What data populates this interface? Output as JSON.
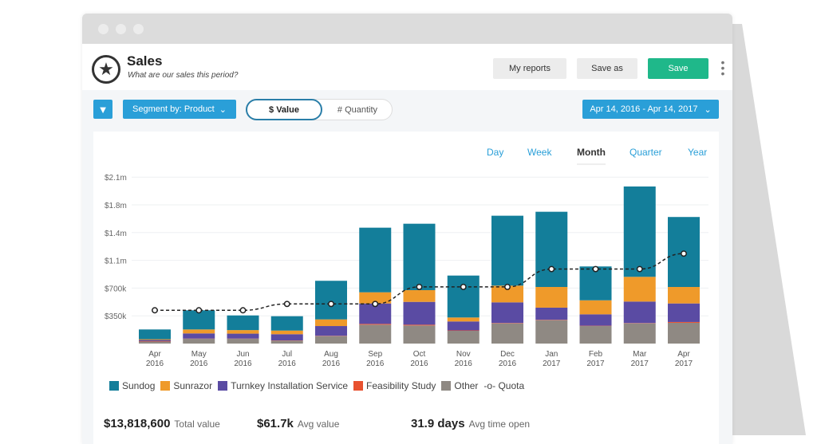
{
  "header": {
    "title": "Sales",
    "subtitle": "What are our sales this period?",
    "my_reports": "My reports",
    "save_as": "Save as",
    "save": "Save"
  },
  "toolbar": {
    "segment": "Segment by: Product",
    "value_toggle": "$ Value",
    "quantity_toggle": "# Quantity",
    "date_range": "Apr 14, 2016 - Apr 14, 2017"
  },
  "periods": [
    {
      "label": "Day"
    },
    {
      "label": "Week"
    },
    {
      "label": "Month"
    },
    {
      "label": "Quarter"
    },
    {
      "label": "Year"
    }
  ],
  "active_period": "Month",
  "colors": {
    "accent": "#2a9fd8",
    "save": "#1fb88a"
  },
  "chart_data": {
    "type": "bar",
    "stacked": true,
    "categories": [
      [
        "Apr",
        "2016"
      ],
      [
        "May",
        "2016"
      ],
      [
        "Jun",
        "2016"
      ],
      [
        "Jul",
        "2016"
      ],
      [
        "Aug",
        "2016"
      ],
      [
        "Sep",
        "2016"
      ],
      [
        "Oct",
        "2016"
      ],
      [
        "Nov",
        "2016"
      ],
      [
        "Dec",
        "2016"
      ],
      [
        "Jan",
        "2017"
      ],
      [
        "Feb",
        "2017"
      ],
      [
        "Mar",
        "2017"
      ],
      [
        "Apr",
        "2017"
      ]
    ],
    "yticks": [
      {
        "v": 350000,
        "label": "$350k"
      },
      {
        "v": 700000,
        "label": "$700k"
      },
      {
        "v": 1050000,
        "label": "$1.1m"
      },
      {
        "v": 1400000,
        "label": "$1.4m"
      },
      {
        "v": 1750000,
        "label": "$1.8m"
      },
      {
        "v": 2100000,
        "label": "$2.1m"
      }
    ],
    "ylim": [
      0,
      2100000
    ],
    "grid": true,
    "legend": "bottom-left",
    "series": [
      {
        "name": "Other",
        "color": "#8f8983",
        "values": [
          25000,
          60000,
          60000,
          37000,
          94000,
          238000,
          228000,
          161000,
          255000,
          295000,
          221000,
          255000,
          262000
        ]
      },
      {
        "name": "Feasibility Study",
        "color": "#e8512f",
        "values": [
          5000,
          3000,
          3000,
          3000,
          4000,
          10000,
          10000,
          5000,
          5000,
          5000,
          4000,
          4000,
          10000
        ]
      },
      {
        "name": "Turnkey Installation Service",
        "color": "#5a4ba3",
        "values": [
          15000,
          65000,
          62000,
          78000,
          123000,
          258000,
          288000,
          113000,
          260000,
          153000,
          144000,
          271000,
          234000
        ]
      },
      {
        "name": "Sunrazor",
        "color": "#ef9a2a",
        "values": [
          10000,
          50000,
          45000,
          46000,
          84000,
          141000,
          148000,
          50000,
          211000,
          261000,
          177000,
          312000,
          208000
        ]
      },
      {
        "name": "Sundog",
        "color": "#137e9a",
        "values": [
          123000,
          242000,
          185000,
          181000,
          487000,
          815000,
          838000,
          529000,
          882000,
          949000,
          427000,
          1140000,
          883000
        ]
      }
    ],
    "quota": {
      "name": "Quota",
      "values": [
        420000,
        420000,
        420000,
        500000,
        500000,
        500000,
        715000,
        715000,
        715000,
        940000,
        940000,
        940000,
        1135000
      ]
    },
    "legend_order": [
      "Sundog",
      "Sunrazor",
      "Turnkey Installation Service",
      "Feasibility Study",
      "Other"
    ]
  },
  "legend": [
    {
      "label": "Sundog",
      "color": "#137e9a"
    },
    {
      "label": "Sunrazor",
      "color": "#ef9a2a"
    },
    {
      "label": "Turnkey Installation Service",
      "color": "#5a4ba3"
    },
    {
      "label": "Feasibility Study",
      "color": "#e8512f"
    },
    {
      "label": "Other",
      "color": "#8f8983"
    },
    {
      "label": "Quota"
    }
  ],
  "stats": [
    {
      "value": "$13,818,600",
      "label": "Total value"
    },
    {
      "value": "$61.7k",
      "label": "Avg value"
    },
    {
      "value": "31.9 days",
      "label": "Avg time open"
    }
  ]
}
